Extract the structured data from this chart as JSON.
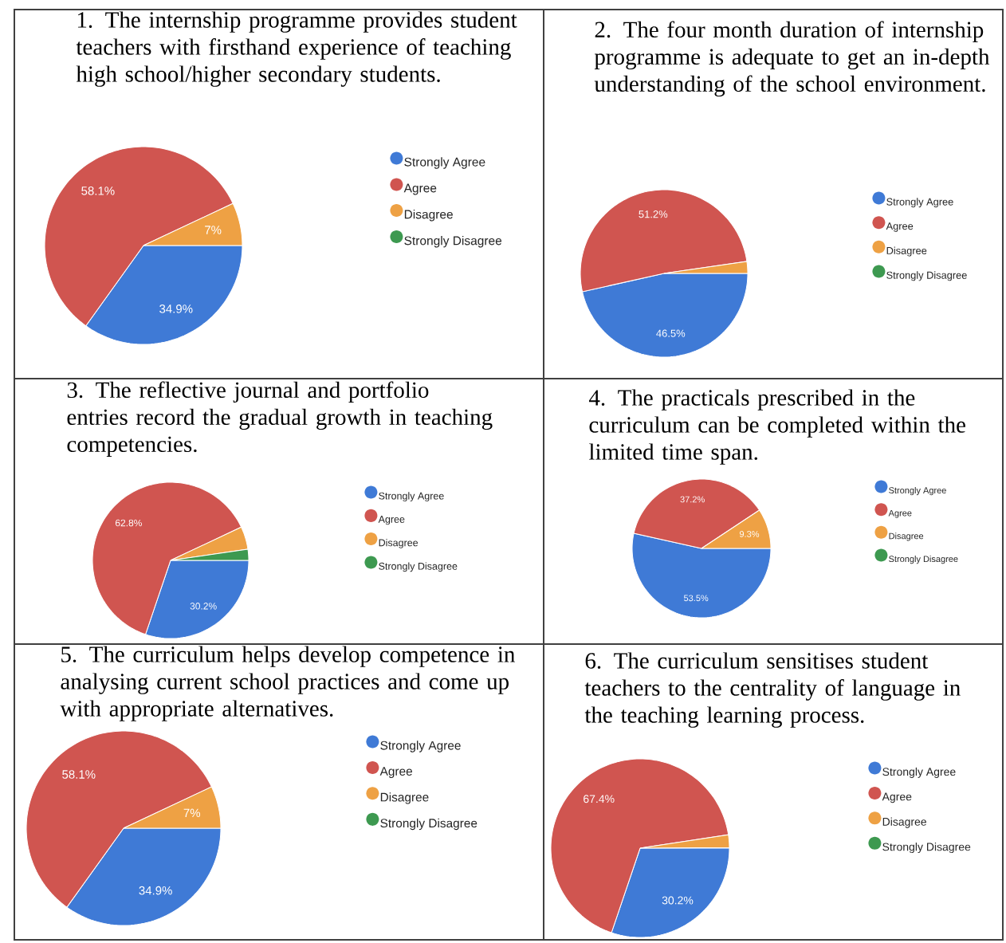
{
  "chart_data": [
    {
      "type": "pie",
      "title": "1. The internship programme provides student teachers with firsthand experience of teaching high school/higher secondary students.",
      "categories": [
        "Strongly Agree",
        "Agree",
        "Disagree",
        "Strongly Disagree"
      ],
      "values": [
        34.9,
        58.1,
        7,
        0
      ],
      "value_labels": [
        "34.9%",
        "58.1%",
        "7%",
        null
      ],
      "colors": [
        "#3f7ad6",
        "#d05550",
        "#eea144",
        "#3d9950"
      ],
      "legend": "right"
    },
    {
      "type": "pie",
      "title": "2. The four month duration of internship programme is adequate to get an in-depth understanding of the school environment.",
      "categories": [
        "Strongly Agree",
        "Agree",
        "Disagree",
        "Strongly Disagree"
      ],
      "values": [
        46.5,
        51.2,
        2.3,
        0
      ],
      "value_labels": [
        "46.5%",
        "51.2%",
        null,
        null
      ],
      "colors": [
        "#3f7ad6",
        "#d05550",
        "#eea144",
        "#3d9950"
      ],
      "legend": "right"
    },
    {
      "type": "pie",
      "title": "3. The reflective journal and portfolio entries record the gradual growth in teaching competencies.",
      "categories": [
        "Strongly Agree",
        "Agree",
        "Disagree",
        "Strongly Disagree"
      ],
      "values": [
        30.2,
        62.8,
        4.7,
        2.3
      ],
      "value_labels": [
        "30.2%",
        "62.8%",
        null,
        null
      ],
      "colors": [
        "#3f7ad6",
        "#d05550",
        "#eea144",
        "#3d9950"
      ],
      "legend": "right"
    },
    {
      "type": "pie",
      "title": "4. The practicals prescribed in the curriculum can be completed within the limited time span.",
      "categories": [
        "Strongly Agree",
        "Agree",
        "Disagree",
        "Strongly Disagree"
      ],
      "values": [
        53.5,
        37.2,
        9.3,
        0
      ],
      "value_labels": [
        "53.5%",
        "37.2%",
        "9.3%",
        null
      ],
      "colors": [
        "#3f7ad6",
        "#d05550",
        "#eea144",
        "#3d9950"
      ],
      "legend": "right"
    },
    {
      "type": "pie",
      "title": "5. The curriculum helps develop competence in analysing current school practices and come up with appropriate alternatives.",
      "categories": [
        "Strongly Agree",
        "Agree",
        "Disagree",
        "Strongly Disagree"
      ],
      "values": [
        34.9,
        58.1,
        7,
        0
      ],
      "value_labels": [
        "34.9%",
        "58.1%",
        "7%",
        null
      ],
      "colors": [
        "#3f7ad6",
        "#d05550",
        "#eea144",
        "#3d9950"
      ],
      "legend": "right"
    },
    {
      "type": "pie",
      "title": "6. The curriculum sensitises student teachers to the centrality of language in the teaching learning process.",
      "categories": [
        "Strongly Agree",
        "Agree",
        "Disagree",
        "Strongly Disagree"
      ],
      "values": [
        30.2,
        67.4,
        2.3,
        0
      ],
      "value_labels": [
        "30.2%",
        "67.4%",
        null,
        null
      ],
      "colors": [
        "#3f7ad6",
        "#d05550",
        "#eea144",
        "#3d9950"
      ],
      "legend": "right"
    }
  ]
}
